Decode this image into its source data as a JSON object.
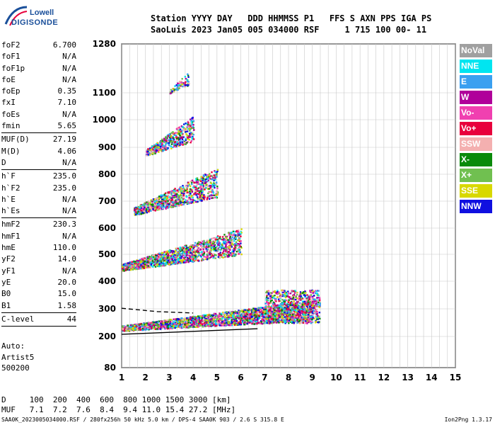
{
  "logo": {
    "line1": "Lowell",
    "line2": "DIGISONDE"
  },
  "header": {
    "line1": "Station YYYY DAY   DDD HHMMSS P1   FFS S AXN PPS IGA PS",
    "line2": "SaoLuis 2023 Jan05 005 034000 RSF     1 715 100 00- 11"
  },
  "params": [
    {
      "k": "foF2",
      "v": "6.700"
    },
    {
      "k": "foF1",
      "v": "N/A"
    },
    {
      "k": "foF1p",
      "v": "N/A"
    },
    {
      "k": "foE",
      "v": "N/A"
    },
    {
      "k": "foEp",
      "v": "0.35"
    },
    {
      "k": "fxI",
      "v": "7.10"
    },
    {
      "k": "foEs",
      "v": "N/A"
    },
    {
      "k": "fmin",
      "v": "5.65"
    },
    {
      "sep": true
    },
    {
      "k": "MUF(D)",
      "v": "27.19"
    },
    {
      "k": "M(D)",
      "v": "4.06"
    },
    {
      "k": "D",
      "v": "N/A"
    },
    {
      "sep": true
    },
    {
      "k": "h`F",
      "v": "235.0"
    },
    {
      "k": "h`F2",
      "v": "235.0"
    },
    {
      "k": "h`E",
      "v": "N/A"
    },
    {
      "k": "h`Es",
      "v": "N/A"
    },
    {
      "sep": true
    },
    {
      "k": "hmF2",
      "v": "230.3"
    },
    {
      "k": "hmF1",
      "v": "N/A"
    },
    {
      "k": "hmE",
      "v": "110.0"
    },
    {
      "k": "yF2",
      "v": "14.0"
    },
    {
      "k": "yF1",
      "v": "N/A"
    },
    {
      "k": "yE",
      "v": "20.0"
    },
    {
      "k": "B0",
      "v": "15.0"
    },
    {
      "k": "B1",
      "v": "1.58"
    },
    {
      "sep": true
    },
    {
      "k": "C-level",
      "v": "44"
    },
    {
      "sep": true
    }
  ],
  "auto": {
    "line1": "Auto:",
    "line2": "Artist5",
    "line3": "500200"
  },
  "legend": [
    {
      "label": "NoVal",
      "color": "#a0a0a0"
    },
    {
      "label": "NNE",
      "color": "#00e5f0"
    },
    {
      "label": "E",
      "color": "#3aa0f0"
    },
    {
      "label": "W",
      "color": "#b0009a"
    },
    {
      "label": "Vo-",
      "color": "#f040b0"
    },
    {
      "label": "Vo+",
      "color": "#e8003c"
    },
    {
      "label": "SSW",
      "color": "#f4b0b0"
    },
    {
      "label": "X-",
      "color": "#0a8a0a"
    },
    {
      "label": "X+",
      "color": "#70c050"
    },
    {
      "label": "SSE",
      "color": "#d8d800"
    },
    {
      "label": "NNW",
      "color": "#1010e0"
    }
  ],
  "bottom": {
    "line1": "D     100  200  400  600  800 1000 1500 3000 [km]",
    "line2": "MUF   7.1  7.2  7.6  8.4  9.4 11.0 15.4 27.2 [MHz]"
  },
  "footer": "SAA0K_2023005034000.RSF / 280fx256h 50 kHz 5.0 km / DPS-4 SAA0K 903 / 2.6 S 315.8 E",
  "version": "Ion2Png 1.3.17",
  "chart_data": {
    "type": "scatter",
    "x_ticks": [
      "1",
      "2",
      "3",
      "4",
      "5",
      "6",
      "7",
      "8",
      "9",
      "10",
      "11",
      "12",
      "13",
      "14",
      "15"
    ],
    "y_ticks": [
      "1280",
      "1100",
      "1000",
      "900",
      "800",
      "700",
      "600",
      "500",
      "400",
      "300",
      "200",
      "80"
    ],
    "xlim": [
      1,
      15
    ],
    "ylim": [
      80,
      1280
    ],
    "grid": true,
    "echo_bands": [
      {
        "name": "O-trace",
        "x_start": 1.0,
        "x_end": 9.0,
        "h_start": 225,
        "h_end": 300
      },
      {
        "name": "2-hop",
        "x_start": 1.0,
        "x_end": 6.0,
        "h_start": 440,
        "h_end": 540
      },
      {
        "name": "3-hop",
        "x_start": 1.5,
        "x_end": 5.0,
        "h_start": 650,
        "h_end": 760
      },
      {
        "name": "4-hop",
        "x_start": 2.0,
        "x_end": 4.0,
        "h_start": 870,
        "h_end": 960
      },
      {
        "name": "5-hop",
        "x_start": 3.0,
        "x_end": 3.8,
        "h_start": 1100,
        "h_end": 1150
      }
    ],
    "profile_lines": [
      {
        "name": "solid",
        "points": [
          [
            1.0,
            208
          ],
          [
            6.7,
            228
          ]
        ]
      },
      {
        "name": "dashed",
        "points": [
          [
            1.0,
            302
          ],
          [
            2.5,
            290
          ],
          [
            4.0,
            285
          ]
        ]
      }
    ]
  }
}
